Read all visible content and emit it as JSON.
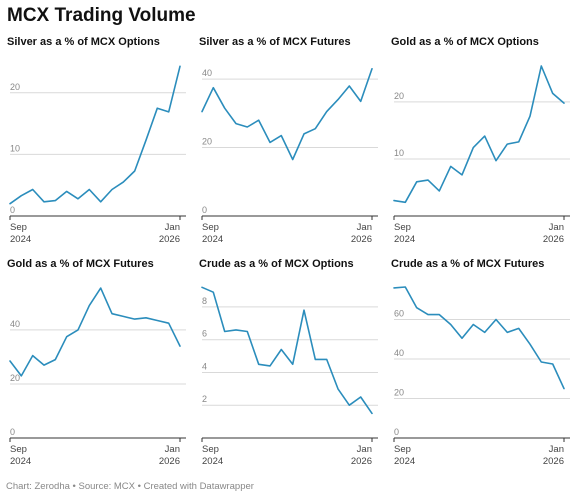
{
  "title": "MCX Trading Volume",
  "footer": "Chart: Zerodha • Source: MCX • Created with Datawrapper",
  "colors": {
    "line": "#2b8dbc",
    "grid": "#d9d9d9",
    "axis": "#333333"
  },
  "chart_data": [
    {
      "type": "line",
      "title": "Silver as a % of MCX Options",
      "x_labels": [
        [
          "Sep",
          "2024"
        ],
        [
          "Jan",
          "2026"
        ]
      ],
      "y_ticks": [
        0,
        10,
        20
      ],
      "ylim": [
        0,
        25
      ],
      "grid": true,
      "values": [
        2.0,
        3.3,
        4.3,
        2.3,
        2.5,
        4.0,
        2.8,
        4.3,
        2.3,
        4.3,
        5.5,
        7.3,
        12.3,
        17.5,
        16.9,
        24.3
      ]
    },
    {
      "type": "line",
      "title": "Silver as a % of MCX Futures",
      "x_labels": [
        [
          "Sep",
          "2024"
        ],
        [
          "Jan",
          "2026"
        ]
      ],
      "y_ticks": [
        0,
        20,
        40
      ],
      "ylim": [
        0,
        45
      ],
      "grid": true,
      "values": [
        30.5,
        37.5,
        31.5,
        27.0,
        26.0,
        28.0,
        21.5,
        23.5,
        16.5,
        24.0,
        25.5,
        30.5,
        34.0,
        38.0,
        33.5,
        43.0
      ]
    },
    {
      "type": "line",
      "title": "Gold as a % of MCX Options",
      "x_labels": [
        [
          "Sep",
          "2024"
        ],
        [
          "Jan",
          "2026"
        ]
      ],
      "y_ticks": [
        10,
        20
      ],
      "ylim": [
        0,
        27
      ],
      "grid": true,
      "values": [
        2.7,
        2.4,
        6.0,
        6.3,
        4.4,
        8.7,
        7.2,
        12.0,
        14.0,
        9.7,
        12.6,
        13.0,
        17.5,
        26.3,
        21.5,
        19.8
      ]
    },
    {
      "type": "line",
      "title": "Gold as a % of MCX Futures",
      "x_labels": [
        [
          "Sep",
          "2024"
        ],
        [
          "Jan",
          "2026"
        ]
      ],
      "y_ticks": [
        0,
        20,
        40
      ],
      "ylim": [
        0,
        57
      ],
      "grid": true,
      "values": [
        28.5,
        23.0,
        30.5,
        27.0,
        29.0,
        37.5,
        40.0,
        49.0,
        55.5,
        46.0,
        45.0,
        44.0,
        44.5,
        43.5,
        42.5,
        34.0
      ]
    },
    {
      "type": "line",
      "title": "Crude as a % of MCX Options",
      "x_labels": [
        [
          "Sep",
          "2024"
        ],
        [
          "Jan",
          "2026"
        ]
      ],
      "y_ticks": [
        2,
        4,
        6,
        8
      ],
      "ylim": [
        0,
        9.4
      ],
      "grid": true,
      "values": [
        9.2,
        8.9,
        6.5,
        6.6,
        6.5,
        4.5,
        4.4,
        5.4,
        4.5,
        7.8,
        4.8,
        4.8,
        3.0,
        2.0,
        2.5,
        1.5
      ]
    },
    {
      "type": "line",
      "title": "Crude as a % of MCX Futures",
      "x_labels": [
        [
          "Sep",
          "2024"
        ],
        [
          "Jan",
          "2026"
        ]
      ],
      "y_ticks": [
        0,
        20,
        40,
        60
      ],
      "ylim": [
        0,
        78
      ],
      "grid": true,
      "values": [
        76.0,
        76.5,
        66.0,
        62.5,
        62.5,
        57.5,
        50.5,
        57.5,
        53.5,
        60.0,
        53.5,
        55.5,
        47.5,
        38.5,
        37.5,
        25.0
      ]
    }
  ]
}
